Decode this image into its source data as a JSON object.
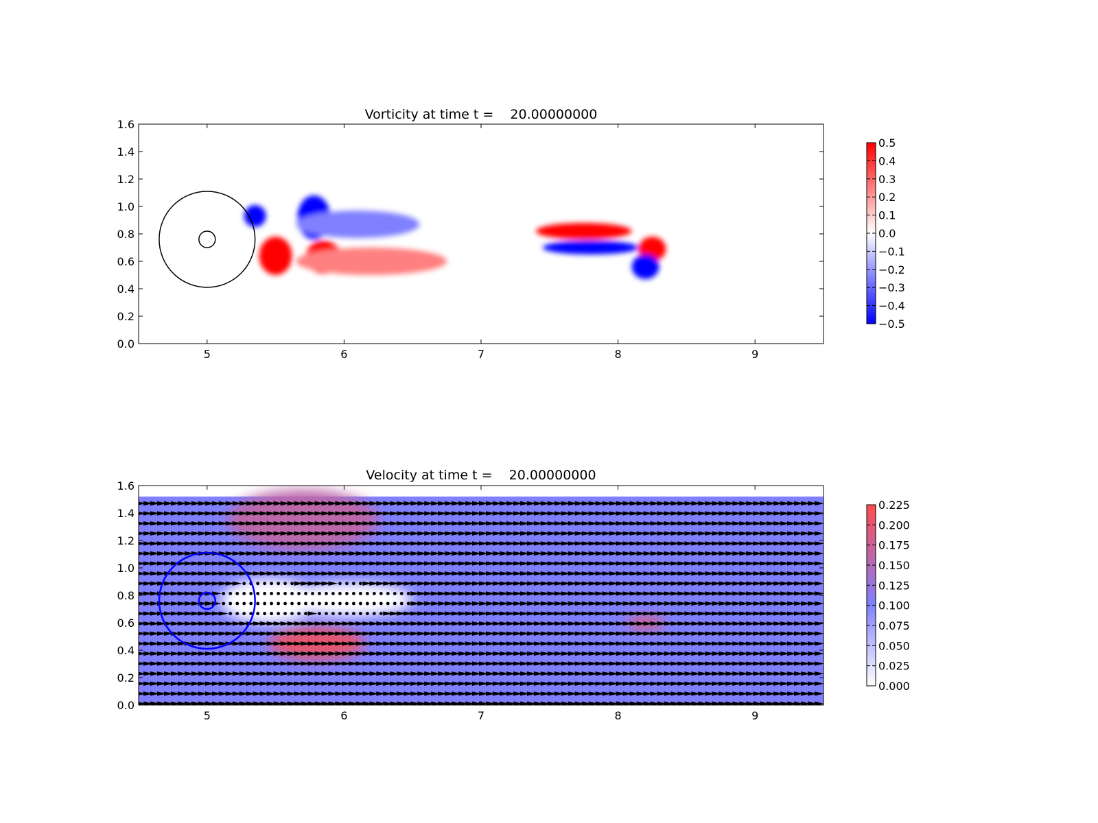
{
  "colors": {
    "vorticity_positive": "#ff0000",
    "vorticity_negative": "#0000ff",
    "velocity_low": "#ffffff",
    "velocity_mid": "#8080ff",
    "velocity_high": "#ff4c4c",
    "quiver": "#000000",
    "circle_top": "#000000",
    "circle_bottom": "#0000ff"
  },
  "chart_data": [
    {
      "type": "heatmap",
      "field": "vorticity",
      "title": "Vorticity at time t =    20.00000000",
      "xlabel": "",
      "ylabel": "",
      "xlim": [
        4.5,
        9.5
      ],
      "ylim": [
        0.0,
        1.6
      ],
      "xticks": [
        "5",
        "6",
        "7",
        "8",
        "9"
      ],
      "yticks": [
        "0.0",
        "0.2",
        "0.4",
        "0.6",
        "0.8",
        "1.0",
        "1.2",
        "1.4",
        "1.6"
      ],
      "colorbar": {
        "range": [
          -0.5,
          0.5
        ],
        "ticks": [
          "0.5",
          "0.4",
          "0.3",
          "0.2",
          "0.1",
          "0.0",
          "−0.1",
          "−0.2",
          "−0.3",
          "−0.4",
          "−0.5"
        ],
        "colormap": "bwr"
      },
      "circles": [
        {
          "center": [
            5.0,
            0.76
          ],
          "radius": 0.35
        },
        {
          "center": [
            5.0,
            0.76
          ],
          "radius": 0.06
        }
      ],
      "features": [
        {
          "label": "blue vortex",
          "center": [
            5.35,
            0.93
          ],
          "radii": [
            0.08,
            0.08
          ],
          "value": -0.5
        },
        {
          "label": "blue vortex",
          "center": [
            5.78,
            0.92
          ],
          "radii": [
            0.12,
            0.16
          ],
          "value": -0.5
        },
        {
          "label": "blue shear layer",
          "center": [
            6.1,
            0.87
          ],
          "radii": [
            0.45,
            0.1
          ],
          "value": -0.25
        },
        {
          "label": "red vortex",
          "center": [
            5.5,
            0.64
          ],
          "radii": [
            0.12,
            0.14
          ],
          "value": 0.5
        },
        {
          "label": "red vortex",
          "center": [
            5.85,
            0.63
          ],
          "radii": [
            0.13,
            0.12
          ],
          "value": 0.5
        },
        {
          "label": "red shear layer",
          "center": [
            6.2,
            0.6
          ],
          "radii": [
            0.55,
            0.1
          ],
          "value": 0.25
        },
        {
          "label": "red band",
          "center": [
            7.75,
            0.82
          ],
          "radii": [
            0.35,
            0.06
          ],
          "value": 0.5
        },
        {
          "label": "blue band",
          "center": [
            7.8,
            0.7
          ],
          "radii": [
            0.35,
            0.05
          ],
          "value": -0.5
        },
        {
          "label": "red vortex",
          "center": [
            8.25,
            0.69
          ],
          "radii": [
            0.1,
            0.09
          ],
          "value": 0.5
        },
        {
          "label": "blue vortex",
          "center": [
            8.2,
            0.56
          ],
          "radii": [
            0.1,
            0.09
          ],
          "value": -0.5
        }
      ]
    },
    {
      "type": "heatmap",
      "field": "velocity magnitude with quiver arrows",
      "title": "Velocity at time t =    20.00000000",
      "xlabel": "",
      "ylabel": "",
      "xlim": [
        4.5,
        9.5
      ],
      "ylim": [
        0.0,
        1.6
      ],
      "data_ylim": [
        0.0,
        1.52
      ],
      "xticks": [
        "5",
        "6",
        "7",
        "8",
        "9"
      ],
      "yticks": [
        "0.0",
        "0.2",
        "0.4",
        "0.6",
        "0.8",
        "1.0",
        "1.2",
        "1.4",
        "1.6"
      ],
      "colorbar": {
        "range": [
          0.0,
          0.225
        ],
        "ticks": [
          "0.225",
          "0.200",
          "0.175",
          "0.150",
          "0.125",
          "0.100",
          "0.075",
          "0.050",
          "0.025",
          "0.000"
        ]
      },
      "background_speed": 0.1,
      "circles": [
        {
          "center": [
            5.0,
            0.76
          ],
          "radius": 0.35
        },
        {
          "center": [
            5.0,
            0.76
          ],
          "radius": 0.06
        }
      ],
      "quiver_spacing": [
        0.05,
        0.073
      ],
      "features": [
        {
          "label": "slow wake",
          "center": [
            5.45,
            0.76
          ],
          "radii": [
            0.35,
            0.16
          ],
          "speed": 0.0
        },
        {
          "label": "slow wake",
          "center": [
            6.05,
            0.77
          ],
          "radii": [
            0.45,
            0.12
          ],
          "speed": 0.0
        },
        {
          "label": "fast upper band",
          "center": [
            5.7,
            1.35
          ],
          "radii": [
            0.55,
            0.22
          ],
          "speed": 0.16
        },
        {
          "label": "fast lower band",
          "center": [
            5.8,
            0.45
          ],
          "radii": [
            0.35,
            0.12
          ],
          "speed": 0.2
        },
        {
          "label": "fast wake streak",
          "center": [
            8.2,
            0.6
          ],
          "radii": [
            0.14,
            0.04
          ],
          "speed": 0.2
        }
      ]
    }
  ]
}
